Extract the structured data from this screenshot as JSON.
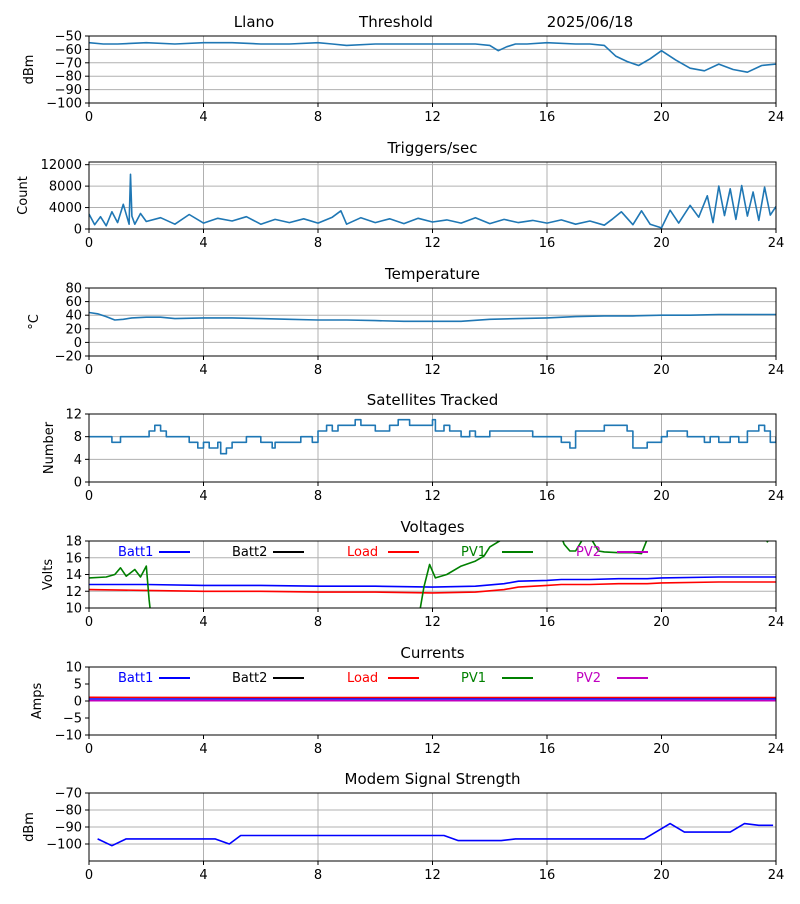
{
  "header": {
    "site": "Llano",
    "mode": "Threshold",
    "date": "2025/06/18"
  },
  "colors": {
    "series_blue": "#1f77b4",
    "grid": "#b0b0b0"
  },
  "chart_data": [
    {
      "id": "threshold",
      "type": "line",
      "title": "",
      "xlabel": "",
      "ylabel": "dBm",
      "xlim": [
        0,
        24
      ],
      "ylim": [
        -100,
        -50
      ],
      "yticks": [
        -100,
        -90,
        -80,
        -70,
        -60,
        -50
      ],
      "xticks": [
        0,
        4,
        8,
        12,
        16,
        20,
        24
      ],
      "grid": true,
      "series": [
        {
          "color": "#1f77b4",
          "x": [
            0,
            0.5,
            1,
            2,
            3,
            4,
            5,
            6,
            7,
            8,
            8.5,
            9,
            10,
            11,
            12,
            13,
            13.5,
            14,
            14.3,
            14.6,
            14.9,
            15.3,
            16,
            17,
            17.5,
            18,
            18.4,
            18.8,
            19.2,
            19.6,
            20,
            20.5,
            21,
            21.5,
            22,
            22.5,
            23,
            23.5,
            24
          ],
          "y": [
            -55,
            -56,
            -56,
            -55,
            -56,
            -55,
            -55,
            -56,
            -56,
            -55,
            -56,
            -57,
            -56,
            -56,
            -56,
            -56,
            -56,
            -57,
            -61,
            -58,
            -56,
            -56,
            -55,
            -56,
            -56,
            -57,
            -65,
            -69,
            -72,
            -67,
            -61,
            -68,
            -74,
            -76,
            -71,
            -75,
            -77,
            -72,
            -71
          ]
        }
      ]
    },
    {
      "id": "triggers",
      "type": "line",
      "title": "Triggers/sec",
      "xlabel": "",
      "ylabel": "Count",
      "xlim": [
        0,
        24
      ],
      "ylim": [
        0,
        12500
      ],
      "yticks": [
        0,
        4000,
        8000,
        12000
      ],
      "xticks": [
        0,
        4,
        8,
        12,
        16,
        20,
        24
      ],
      "grid": true,
      "series": [
        {
          "color": "#1f77b4",
          "x": [
            0,
            0.2,
            0.4,
            0.6,
            0.8,
            1.0,
            1.2,
            1.4,
            1.45,
            1.5,
            1.6,
            1.8,
            2.0,
            2.5,
            3,
            3.5,
            4,
            4.5,
            5,
            5.5,
            6,
            6.5,
            7,
            7.5,
            8,
            8.5,
            8.8,
            9,
            9.5,
            10,
            10.5,
            11,
            11.5,
            12,
            12.5,
            13,
            13.5,
            14,
            14.5,
            15,
            15.5,
            16,
            16.5,
            17,
            17.5,
            18,
            18.3,
            18.6,
            19,
            19.3,
            19.6,
            20,
            20.3,
            20.6,
            21,
            21.3,
            21.6,
            21.8,
            22,
            22.2,
            22.4,
            22.6,
            22.8,
            23,
            23.2,
            23.4,
            23.6,
            23.8,
            24
          ],
          "y": [
            2800,
            800,
            2300,
            600,
            3200,
            1200,
            4600,
            900,
            10200,
            2400,
            900,
            2900,
            1400,
            2100,
            900,
            2700,
            1100,
            2000,
            1500,
            2300,
            900,
            1800,
            1200,
            1900,
            1100,
            2200,
            3400,
            900,
            2100,
            1200,
            1900,
            1000,
            2000,
            1300,
            1700,
            1100,
            2100,
            1000,
            1800,
            1200,
            1600,
            1100,
            1700,
            900,
            1500,
            700,
            1900,
            3200,
            800,
            3400,
            900,
            200,
            3500,
            1100,
            4400,
            2200,
            6200,
            1200,
            8000,
            2500,
            7500,
            1800,
            8100,
            2400,
            6900,
            1600,
            7800,
            2600,
            4200
          ]
        }
      ]
    },
    {
      "id": "temperature",
      "type": "line",
      "title": "Temperature",
      "xlabel": "",
      "ylabel": "°C",
      "xlim": [
        0,
        24
      ],
      "ylim": [
        -20,
        80
      ],
      "yticks": [
        -20,
        0,
        20,
        40,
        60,
        80
      ],
      "xticks": [
        0,
        4,
        8,
        12,
        16,
        20,
        24
      ],
      "grid": true,
      "series": [
        {
          "color": "#1f77b4",
          "x": [
            0,
            0.3,
            0.6,
            0.9,
            1.2,
            1.5,
            2,
            2.5,
            3,
            4,
            5,
            6,
            7,
            8,
            9,
            10,
            11,
            12,
            13,
            14,
            15,
            16,
            17,
            18,
            19,
            20,
            21,
            22,
            23,
            24
          ],
          "y": [
            44,
            42,
            38,
            33,
            34,
            36,
            37,
            37,
            35,
            36,
            36,
            35,
            34,
            33,
            33,
            32,
            31,
            31,
            31,
            34,
            35,
            36,
            38,
            39,
            39,
            40,
            40,
            41,
            41,
            41
          ]
        }
      ]
    },
    {
      "id": "satellites",
      "type": "line",
      "title": "Satellites Tracked",
      "xlabel": "",
      "ylabel": "Number",
      "xlim": [
        0,
        24
      ],
      "ylim": [
        0,
        12
      ],
      "yticks": [
        0,
        4,
        8,
        12
      ],
      "xticks": [
        0,
        4,
        8,
        12,
        16,
        20,
        24
      ],
      "grid": true,
      "series": [
        {
          "color": "#1f77b4",
          "step": true,
          "x": [
            0,
            0.8,
            1.1,
            2.0,
            2.1,
            2.3,
            2.5,
            2.7,
            3.2,
            3.5,
            3.8,
            4.0,
            4.2,
            4.4,
            4.5,
            4.6,
            4.8,
            5.0,
            5.5,
            6.0,
            6.4,
            6.5,
            7.0,
            7.4,
            7.8,
            8.0,
            8.3,
            8.5,
            8.7,
            9.0,
            9.3,
            9.5,
            9.8,
            10.0,
            10.5,
            10.8,
            11.2,
            11.4,
            12.0,
            12.1,
            12.4,
            12.6,
            13.0,
            13.3,
            13.5,
            14.0,
            15.0,
            15.2,
            15.5,
            16.0,
            16.5,
            16.8,
            17.0,
            17.5,
            18.0,
            18.8,
            19.0,
            19.5,
            19.8,
            20.0,
            20.2,
            20.5,
            20.9,
            21.5,
            21.7,
            22.0,
            22.4,
            22.7,
            23.0,
            23.2,
            23.4,
            23.6,
            23.8,
            24
          ],
          "y": [
            8,
            7,
            8,
            8,
            9,
            10,
            9,
            8,
            8,
            7,
            6,
            7,
            6,
            6,
            7,
            5,
            6,
            7,
            8,
            7,
            6,
            7,
            7,
            8,
            7,
            9,
            10,
            9,
            10,
            10,
            11,
            10,
            10,
            9,
            10,
            11,
            10,
            10,
            11,
            9,
            10,
            9,
            8,
            9,
            8,
            9,
            9,
            9,
            8,
            8,
            7,
            6,
            9,
            9,
            10,
            9,
            6,
            7,
            7,
            8,
            9,
            9,
            8,
            7,
            8,
            7,
            8,
            7,
            9,
            9,
            10,
            9,
            7,
            8
          ]
        }
      ]
    },
    {
      "id": "voltages",
      "type": "line",
      "title": "Voltages",
      "xlabel": "",
      "ylabel": "Volts",
      "xlim": [
        0,
        24
      ],
      "ylim": [
        10,
        18
      ],
      "yticks": [
        10,
        12,
        14,
        16,
        18
      ],
      "xticks": [
        0,
        4,
        8,
        12,
        16,
        20,
        24
      ],
      "grid": true,
      "legend": [
        {
          "label": "Batt1",
          "color": "#0000ff"
        },
        {
          "label": "Batt2",
          "color": "#000000"
        },
        {
          "label": "Load",
          "color": "#ff0000"
        },
        {
          "label": "PV1",
          "color": "#008000"
        },
        {
          "label": "PV2",
          "color": "#c000c0"
        }
      ],
      "series": [
        {
          "name": "Batt1",
          "color": "#0000ff",
          "x": [
            0,
            2,
            4,
            6,
            8,
            10,
            12,
            13.5,
            14.5,
            15,
            16,
            16.5,
            17.5,
            18.5,
            19.5,
            20,
            22,
            24
          ],
          "y": [
            12.8,
            12.8,
            12.7,
            12.7,
            12.6,
            12.6,
            12.5,
            12.6,
            12.9,
            13.2,
            13.3,
            13.4,
            13.4,
            13.5,
            13.5,
            13.6,
            13.7,
            13.7
          ]
        },
        {
          "name": "Load",
          "color": "#ff0000",
          "x": [
            0,
            2,
            4,
            6,
            8,
            10,
            12,
            13.5,
            14.5,
            15,
            16,
            16.5,
            17.5,
            18.5,
            19.5,
            20,
            22,
            24
          ],
          "y": [
            12.2,
            12.1,
            12.0,
            12.0,
            11.9,
            11.9,
            11.8,
            11.9,
            12.2,
            12.5,
            12.7,
            12.8,
            12.8,
            12.9,
            12.9,
            13.0,
            13.1,
            13.1
          ]
        },
        {
          "name": "PV1",
          "color": "#008000",
          "x": [
            0,
            0.6,
            0.9,
            1.1,
            1.3,
            1.6,
            1.8,
            2.0,
            2.1,
            2.15,
            11.55,
            11.7,
            11.9,
            12.1,
            12.5,
            13.0,
            13.5,
            13.8,
            14.0,
            14.3,
            14.6,
            16.5,
            16.6,
            16.8,
            17.0,
            17.3,
            17.5,
            17.8,
            18.0,
            18.5,
            19.0,
            19.3,
            19.5,
            19.6
          ],
          "y": [
            13.6,
            13.7,
            14.0,
            14.8,
            13.8,
            14.6,
            13.7,
            15.0,
            11.0,
            9.5,
            9.5,
            12.5,
            15.2,
            13.6,
            14.0,
            15.0,
            15.6,
            16.2,
            17.3,
            17.9,
            18.5,
            18.5,
            17.6,
            16.8,
            16.8,
            18.5,
            18.5,
            16.8,
            16.7,
            16.6,
            16.6,
            16.5,
            18.2,
            18.5
          ]
        },
        {
          "name": "PV1",
          "color": "#008000",
          "x": [
            23.6,
            23.7,
            23.8
          ],
          "y": [
            18.5,
            17.9,
            18.5
          ]
        }
      ]
    },
    {
      "id": "currents",
      "type": "line",
      "title": "Currents",
      "xlabel": "",
      "ylabel": "Amps",
      "xlim": [
        0,
        24
      ],
      "ylim": [
        -10,
        10
      ],
      "yticks": [
        -10,
        -5,
        0,
        5,
        10
      ],
      "xticks": [
        0,
        4,
        8,
        12,
        16,
        20,
        24
      ],
      "grid": false,
      "legend": [
        {
          "label": "Batt1",
          "color": "#0000ff"
        },
        {
          "label": "Batt2",
          "color": "#000000"
        },
        {
          "label": "Load",
          "color": "#ff0000"
        },
        {
          "label": "PV1",
          "color": "#008000"
        },
        {
          "label": "PV2",
          "color": "#c000c0"
        }
      ],
      "series": [
        {
          "name": "Load",
          "color": "#ff0000",
          "x": [
            0,
            6,
            12,
            18,
            24
          ],
          "y": [
            1.1,
            1.0,
            1.0,
            1.0,
            1.0
          ]
        },
        {
          "name": "Batt1",
          "color": "#0000ff",
          "x": [
            0,
            24
          ],
          "y": [
            0.6,
            0.6
          ]
        },
        {
          "name": "PV2",
          "color": "#c000c0",
          "x": [
            0,
            24
          ],
          "y": [
            0.1,
            0.1
          ]
        }
      ]
    },
    {
      "id": "modem",
      "type": "line",
      "title": "Modem Signal Strength",
      "xlabel": "",
      "ylabel": "dBm",
      "xlim": [
        0,
        24
      ],
      "ylim": [
        -110,
        -70
      ],
      "yticks": [
        -100,
        -90,
        -80,
        -70
      ],
      "xticks": [
        0,
        4,
        8,
        12,
        16,
        20,
        24
      ],
      "grid": true,
      "series": [
        {
          "color": "#0000ff",
          "x": [
            0.3,
            0.8,
            1.3,
            2.5,
            4.4,
            4.9,
            5.3,
            6.5,
            12.4,
            12.9,
            14.4,
            14.9,
            19.4,
            20.3,
            20.8,
            22.4,
            22.9,
            23.4,
            23.9
          ],
          "y": [
            -97,
            -101,
            -97,
            -97,
            -97,
            -100,
            -95,
            -95,
            -95,
            -98,
            -98,
            -97,
            -97,
            -88,
            -93,
            -93,
            -88,
            -89,
            -89
          ]
        }
      ]
    }
  ]
}
